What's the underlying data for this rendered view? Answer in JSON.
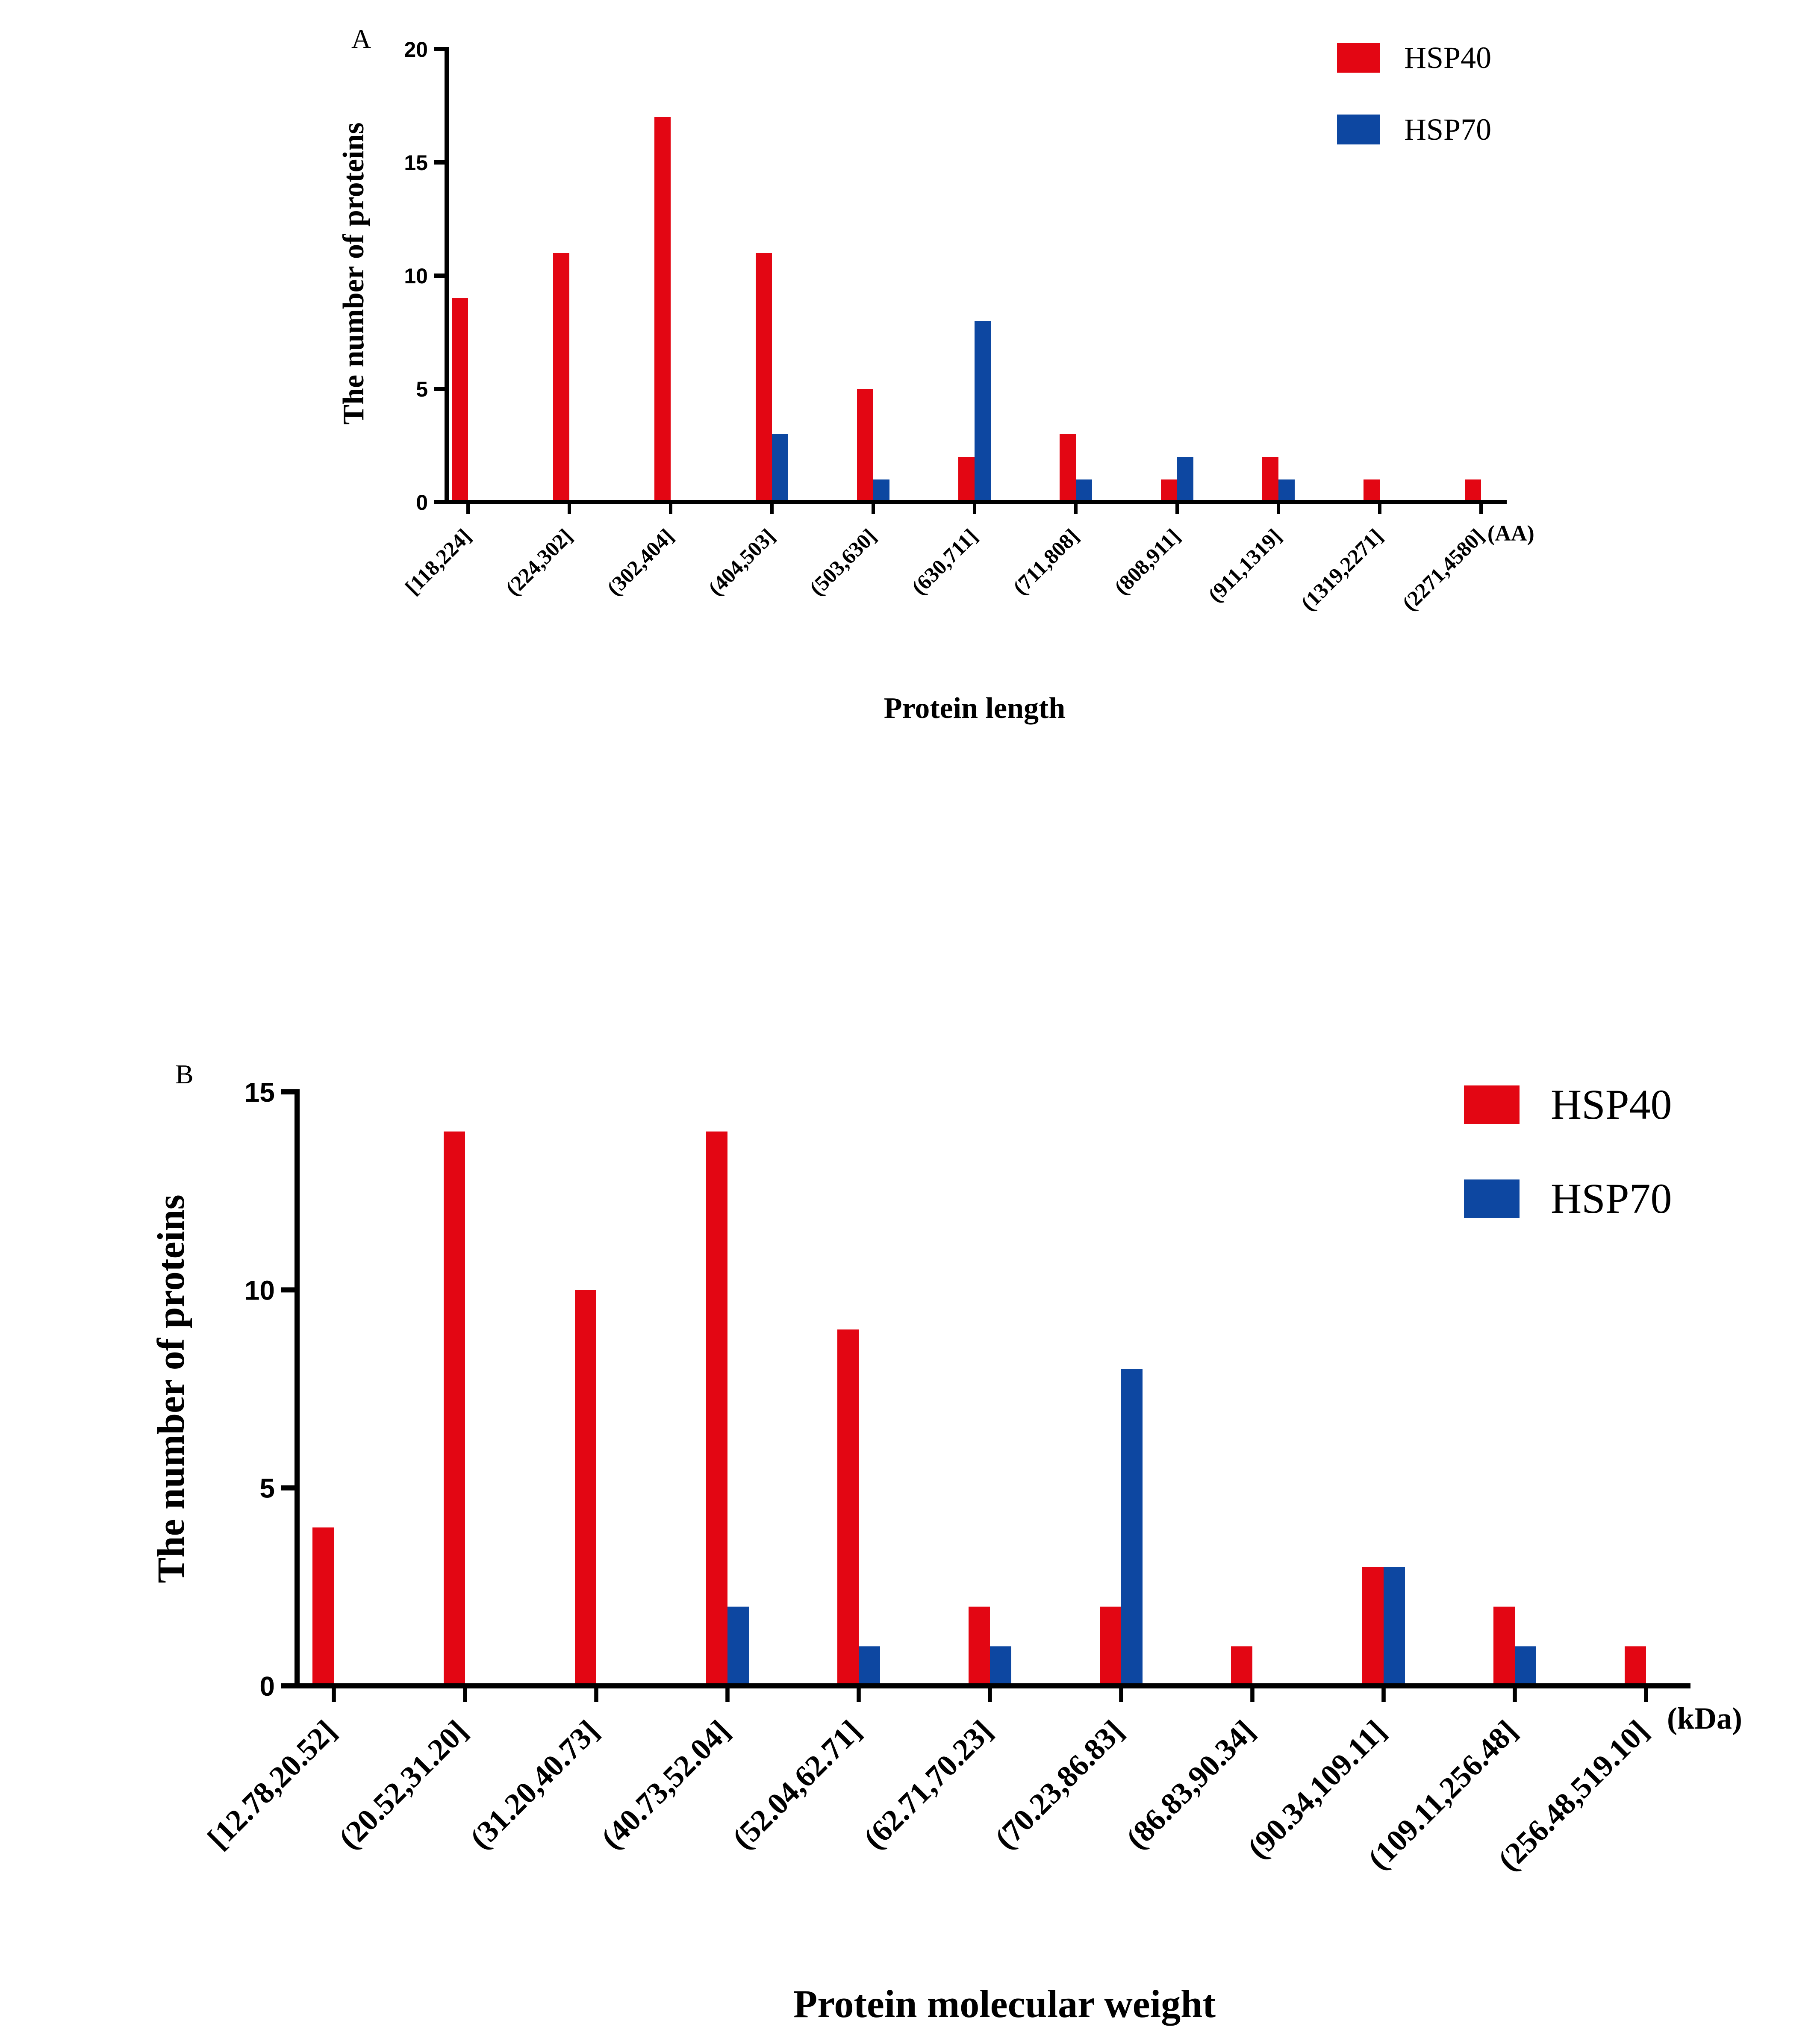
{
  "colors": {
    "HSP40": "#e30613",
    "HSP70": "#0d47a1",
    "axis": "#000000"
  },
  "chart_data": [
    {
      "panel": "A",
      "type": "bar",
      "categories": [
        "[118,224]",
        "(224,302]",
        "(302,404]",
        "(404,503]",
        "(503,630]",
        "(630,711]",
        "(711,808]",
        "(808,911]",
        "(911,1319]",
        "(1319,2271]",
        "(2271,4580]"
      ],
      "series": [
        {
          "name": "HSP40",
          "values": [
            9,
            11,
            17,
            11,
            5,
            2,
            3,
            1,
            2,
            1,
            1
          ]
        },
        {
          "name": "HSP70",
          "values": [
            0,
            0,
            0,
            3,
            1,
            8,
            1,
            2,
            1,
            0,
            0
          ]
        }
      ],
      "xlabel": "Protein length",
      "x_unit": "(AA)",
      "ylabel": "The number of proteins",
      "ylim": [
        0,
        20
      ],
      "yticks": [
        0,
        5,
        10,
        15,
        20
      ],
      "grid": false,
      "legend_position": "top-right"
    },
    {
      "panel": "B",
      "type": "bar",
      "categories": [
        "[12.78,20.52]",
        "(20.52,31.20]",
        "(31.20,40.73]",
        "(40.73,52.04]",
        "(52.04,62.71]",
        "(62.71,70.23]",
        "(70.23,86.83]",
        "(86.83,90.34]",
        "(90.34,109.11]",
        "(109.11,256.48]",
        "(256.48,519.10]"
      ],
      "series": [
        {
          "name": "HSP40",
          "values": [
            4,
            14,
            10,
            14,
            9,
            2,
            2,
            1,
            3,
            2,
            1
          ]
        },
        {
          "name": "HSP70",
          "values": [
            0,
            0,
            0,
            2,
            1,
            1,
            8,
            0,
            3,
            1,
            0
          ]
        }
      ],
      "xlabel": "Protein molecular weight",
      "x_unit": "(kDa)",
      "ylabel": "The number of proteins",
      "ylim": [
        0,
        15
      ],
      "yticks": [
        0,
        5,
        10,
        15
      ],
      "grid": false,
      "legend_position": "top-right"
    }
  ]
}
